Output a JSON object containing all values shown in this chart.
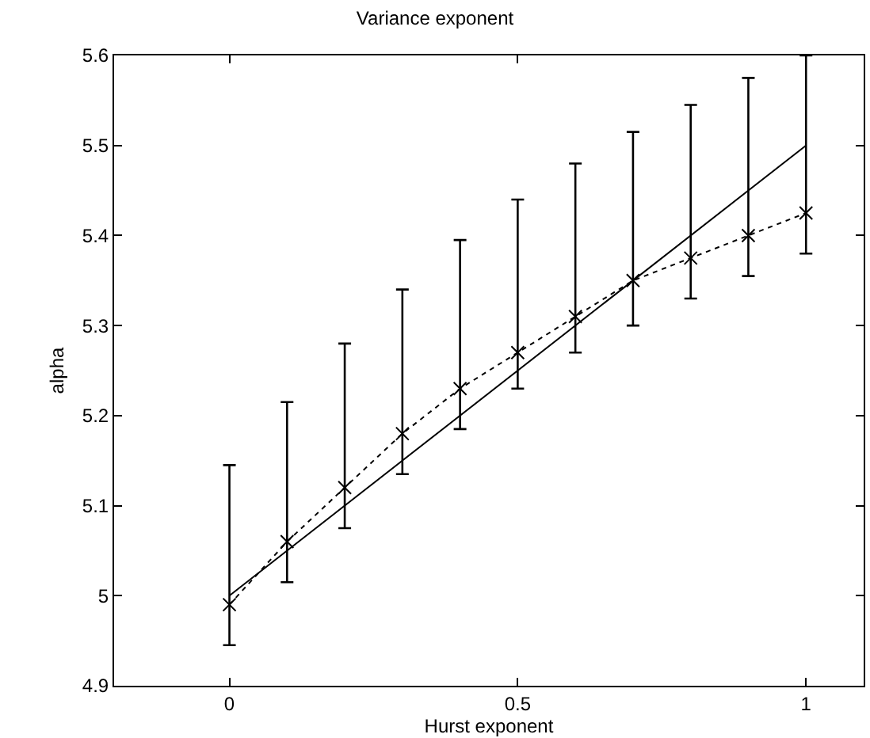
{
  "chart_data": {
    "type": "line",
    "title": "Variance exponent",
    "xlabel": "Hurst exponent",
    "ylabel": "alpha",
    "xlim": [
      -0.2,
      1.1
    ],
    "xticks": [
      0,
      0.5,
      1
    ],
    "ylim": [
      4.9,
      5.6
    ],
    "yticks": [
      4.9,
      5,
      5.1,
      5.2,
      5.3,
      5.4,
      5.5,
      5.6
    ],
    "grid": false,
    "series": [
      {
        "color": "#000000",
        "marker": "cross",
        "line_style": "dotted",
        "x": [
          0,
          0.1,
          0.2,
          0.3,
          0.4,
          0.5,
          0.6,
          0.7,
          0.8,
          0.9,
          1
        ],
        "values": [
          4.99,
          5.06,
          5.12,
          5.18,
          5.23,
          5.27,
          5.31,
          5.35,
          5.375,
          5.4,
          5.425
        ],
        "errors": [
          [
            4.945,
            5.145
          ],
          [
            5.015,
            5.215
          ],
          [
            5.075,
            5.28
          ],
          [
            5.135,
            5.34
          ],
          [
            5.185,
            5.395
          ],
          [
            5.23,
            5.44
          ],
          [
            5.27,
            5.48
          ],
          [
            5.3,
            5.515
          ],
          [
            5.33,
            5.545
          ],
          [
            5.355,
            5.575
          ],
          [
            5.38,
            5.6
          ]
        ]
      },
      {
        "type": "line",
        "color": "#000000",
        "marker": "none",
        "line_style": "solid",
        "x": [
          0,
          1
        ],
        "values": [
          5,
          5.5
        ]
      }
    ]
  }
}
